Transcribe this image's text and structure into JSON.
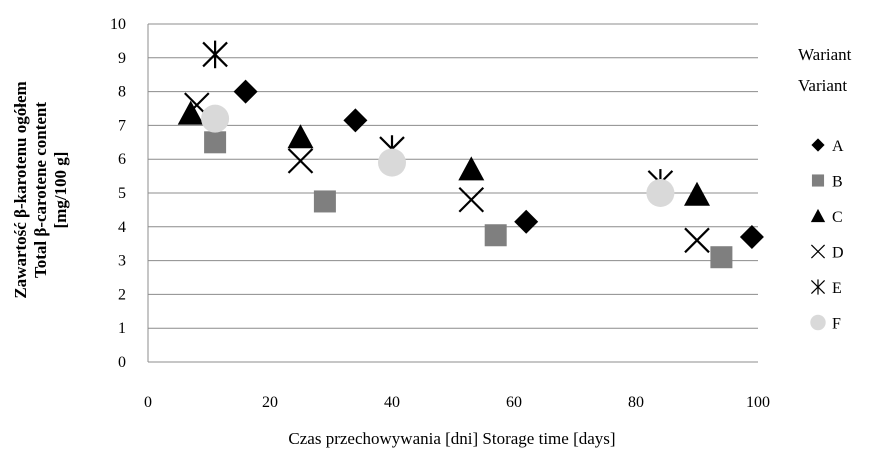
{
  "chart_data": {
    "type": "scatter",
    "title": "",
    "xlabel": "Czas przechowywania [dni] Storage time [days]",
    "ylabel_lines": [
      "Zawartość β-karotenu ogółem",
      "Total β-carotene content",
      "[mg/100 g]"
    ],
    "xlim": [
      0,
      100
    ],
    "ylim": [
      0,
      10
    ],
    "xticks": [
      0,
      20,
      40,
      60,
      80,
      100
    ],
    "yticks": [
      0,
      1,
      2,
      3,
      4,
      5,
      6,
      7,
      8,
      9,
      10
    ],
    "grid": "horizontal",
    "legend": {
      "title_lines": [
        "Wariant",
        "Variant"
      ],
      "position": "right"
    },
    "series": [
      {
        "name": "A",
        "marker": "diamond",
        "color": "#000000",
        "points": [
          [
            16,
            8.0
          ],
          [
            34,
            7.15
          ],
          [
            62,
            4.15
          ],
          [
            99,
            3.7
          ]
        ]
      },
      {
        "name": "B",
        "marker": "square",
        "color": "#7f7f7f",
        "points": [
          [
            11,
            6.5
          ],
          [
            29,
            4.75
          ],
          [
            57,
            3.75
          ],
          [
            94,
            3.1
          ]
        ]
      },
      {
        "name": "C",
        "marker": "triangle",
        "color": "#000000",
        "points": [
          [
            7,
            7.35
          ],
          [
            25,
            6.65
          ],
          [
            53,
            5.7
          ],
          [
            90,
            4.95
          ]
        ]
      },
      {
        "name": "D",
        "marker": "x",
        "color": "#000000",
        "points": [
          [
            8,
            7.6
          ],
          [
            25,
            5.95
          ],
          [
            53,
            4.8
          ],
          [
            90,
            3.6
          ]
        ]
      },
      {
        "name": "E",
        "marker": "asterisk",
        "color": "#000000",
        "points": [
          [
            11,
            9.1
          ],
          [
            40,
            6.3
          ],
          [
            84,
            5.3
          ]
        ]
      },
      {
        "name": "F",
        "marker": "circle",
        "color": "#d9d9d9",
        "points": [
          [
            11,
            7.2
          ],
          [
            40,
            5.9
          ],
          [
            84,
            5.0
          ]
        ]
      }
    ]
  }
}
